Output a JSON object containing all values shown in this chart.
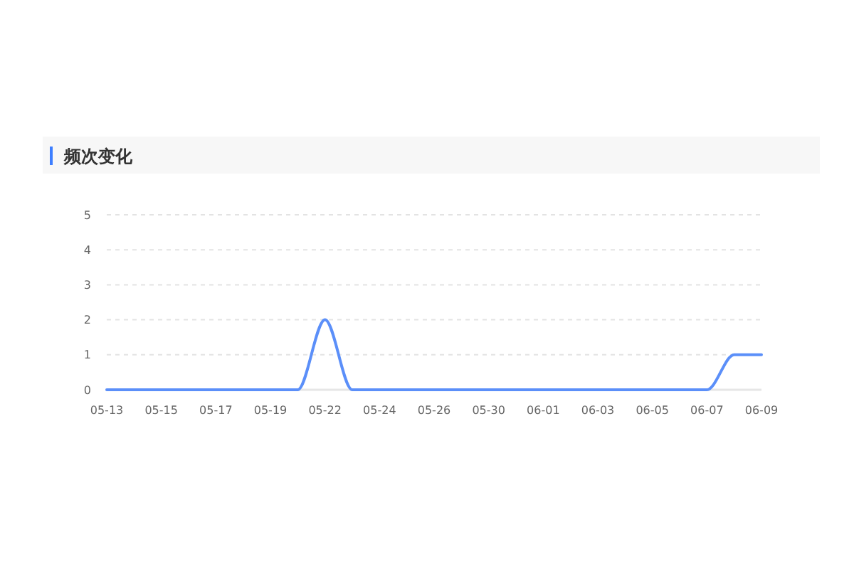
{
  "chart_data": {
    "type": "line",
    "title": "频次变化",
    "categories": [
      "05-13",
      null,
      "05-15",
      null,
      "05-17",
      null,
      "05-19",
      null,
      "05-22",
      null,
      "05-24",
      null,
      "05-26",
      null,
      "05-30",
      null,
      "06-01",
      null,
      "06-03",
      null,
      "06-05",
      null,
      "06-07",
      null,
      "06-09"
    ],
    "series": [
      {
        "color": "#5b8ff9",
        "values": [
          0,
          0,
          0,
          0,
          0,
          0,
          0,
          0,
          2,
          0,
          0,
          0,
          0,
          0,
          0,
          0,
          0,
          0,
          0,
          0,
          0,
          0,
          0,
          1,
          1
        ]
      }
    ],
    "ylim": [
      0,
      5
    ],
    "yticks": [
      0,
      1,
      2,
      3,
      4,
      5
    ],
    "grid": "y",
    "marker": "none",
    "line_style": "solid"
  }
}
